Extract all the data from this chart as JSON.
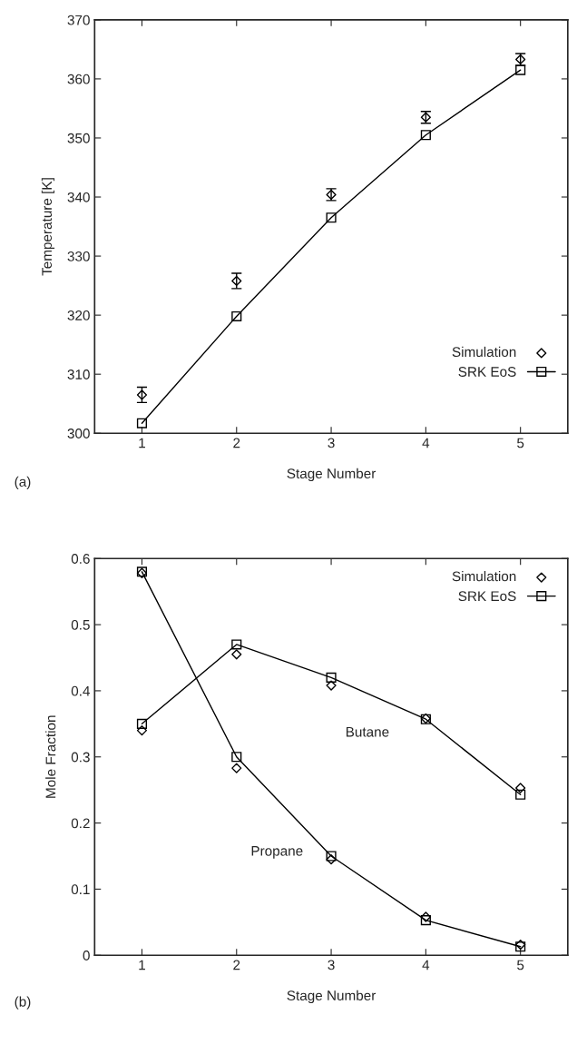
{
  "chart_data": [
    {
      "type": "line",
      "xlabel": "Stage Number",
      "ylabel": "Temperature [K]",
      "x": [
        1,
        2,
        3,
        4,
        5
      ],
      "xlim": [
        0.5,
        5.5
      ],
      "xticks": [
        1,
        2,
        3,
        4,
        5
      ],
      "ylim": [
        300,
        370
      ],
      "yticks": [
        300,
        310,
        320,
        330,
        340,
        350,
        360,
        370
      ],
      "legend": "lower right",
      "annotations": [
        "(a)"
      ],
      "series": [
        {
          "name": "Simulation",
          "type": "scatter",
          "marker": "diamond",
          "color": "#000000",
          "values": [
            306.5,
            325.8,
            340.4,
            353.5,
            363.3
          ],
          "errors": [
            1.3,
            1.3,
            1.0,
            1.0,
            1.0
          ]
        },
        {
          "name": "SRK EoS",
          "marker": "square",
          "color": "#000000",
          "values": [
            301.7,
            319.8,
            336.5,
            350.5,
            361.5
          ]
        }
      ]
    },
    {
      "type": "line",
      "xlabel": "Stage Number",
      "ylabel": "Mole Fraction",
      "x": [
        1,
        2,
        3,
        4,
        5
      ],
      "xlim": [
        0.5,
        5.5
      ],
      "xticks": [
        1,
        2,
        3,
        4,
        5
      ],
      "ylim": [
        0,
        0.6
      ],
      "yticks": [
        0,
        0.1,
        0.2,
        0.3,
        0.4,
        0.5,
        0.6
      ],
      "legend": "upper right",
      "annotations": [
        "(b)",
        "Butane",
        "Propane"
      ],
      "series": [
        {
          "name": "Simulation",
          "type": "scatter",
          "marker": "diamond",
          "color": "#000000",
          "values": [
            0.578,
            0.283,
            0.145,
            0.058,
            0.016
          ]
        },
        {
          "name": "SRK EoS",
          "marker": "square",
          "color": "#000000",
          "values": [
            0.58,
            0.3,
            0.15,
            0.053,
            0.013
          ]
        },
        {
          "type": "scatter",
          "marker": "diamond",
          "color": "#000000",
          "values": [
            0.34,
            0.455,
            0.408,
            0.358,
            0.253
          ]
        },
        {
          "marker": "square",
          "color": "#000000",
          "values": [
            0.35,
            0.47,
            0.42,
            0.357,
            0.243
          ]
        }
      ]
    }
  ]
}
